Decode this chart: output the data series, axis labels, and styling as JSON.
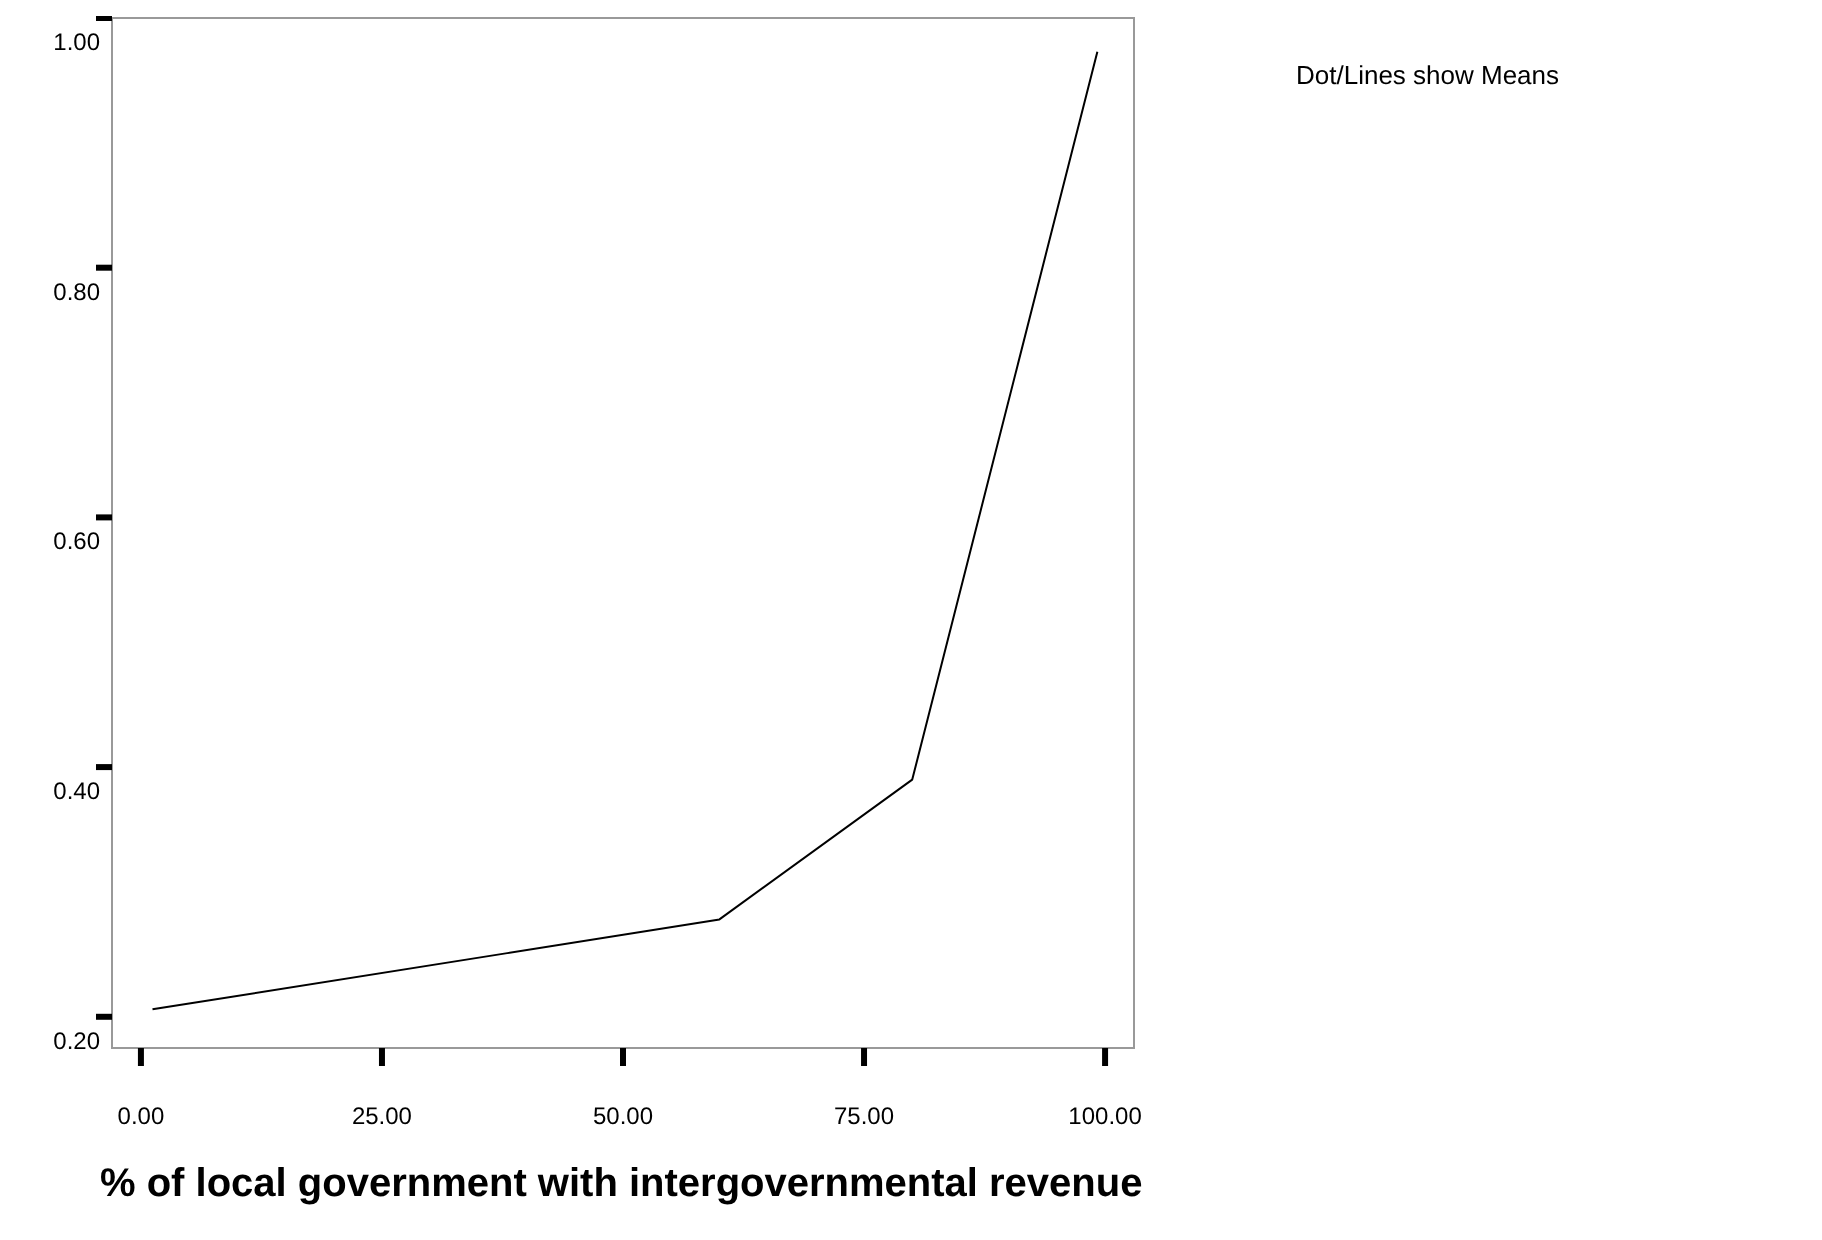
{
  "chart_data": {
    "type": "line",
    "xlabel": "% of local government with intergovernmental revenue",
    "annotations": [
      "Dot/Lines show Means"
    ],
    "x": [
      1.2,
      38,
      60,
      80,
      99.2
    ],
    "series": [
      {
        "color": "#000000",
        "values": [
          0.206,
          0.251,
          0.278,
          0.39,
          0.973
        ]
      }
    ],
    "xlim": [
      -3,
      103
    ],
    "xticks": [
      {
        "value": 0,
        "label": "0.00"
      },
      {
        "value": 25,
        "label": "25.00"
      },
      {
        "value": 50,
        "label": "50.00"
      },
      {
        "value": 75,
        "label": "75.00"
      },
      {
        "value": 100,
        "label": "100.00"
      }
    ],
    "ylim": [
      0.175,
      1.0
    ],
    "yticks": [
      {
        "value": 0.2,
        "label": "0.20"
      },
      {
        "value": 0.4,
        "label": "0.40"
      },
      {
        "value": 0.6,
        "label": "0.60"
      },
      {
        "value": 0.8,
        "label": "0.80"
      },
      {
        "value": 1.0,
        "label": "1.00"
      }
    ],
    "grid": false,
    "marker": "none",
    "line_style": "solid"
  }
}
